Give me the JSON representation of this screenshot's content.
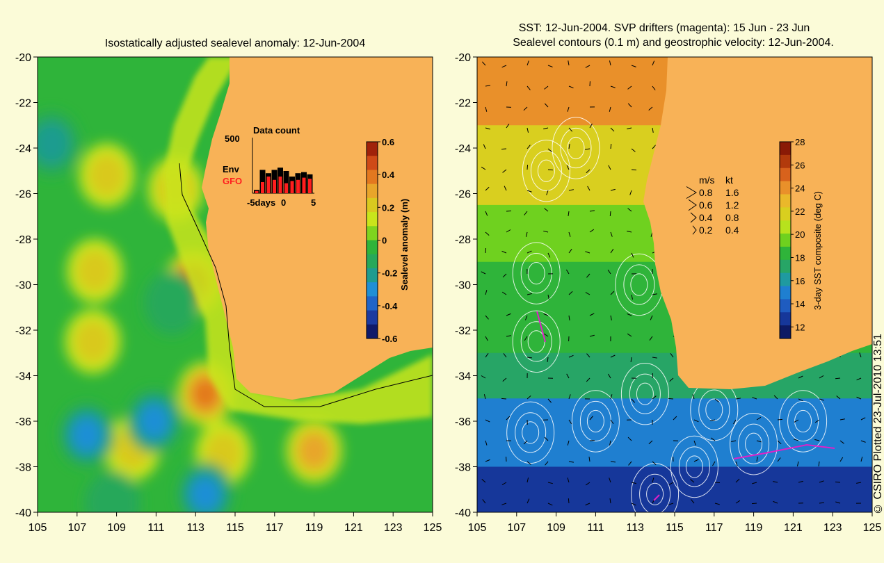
{
  "credit": "© CSIRO Plotted 23-Jul-2010 13:51",
  "colors": {
    "background": "#fbfbd8",
    "land": "#f8b257",
    "ocean_base": "#2fb43a",
    "sla_high": "#d9541a",
    "sla_mid": "#c9e51b",
    "sla_low": "#1f8fd6",
    "contour": "#ffffff",
    "drifter": "#e020c8",
    "gfo_bar": "#ff1e1e",
    "env_bar": "#000000"
  },
  "chart_data": [
    {
      "type": "heatmap",
      "title": "Isostatically adjusted sealevel anomaly: 12-Jun-2004",
      "xlabel": "",
      "ylabel": "",
      "xlim": [
        105,
        125
      ],
      "ylim": [
        -40,
        -20
      ],
      "xticks": [
        "105",
        "107",
        "109",
        "111",
        "113",
        "115",
        "117",
        "119",
        "121",
        "123",
        "125"
      ],
      "yticks": [
        "-20",
        "-22",
        "-24",
        "-26",
        "-28",
        "-30",
        "-32",
        "-34",
        "-36",
        "-38",
        "-40"
      ],
      "colorbar": {
        "label": "Sealevel anomaly (m)",
        "range": [
          -0.6,
          0.6
        ],
        "ticks": [
          "0.6",
          "0.4",
          "0.2",
          "0",
          "-0.2",
          "-0.4",
          "-0.6"
        ],
        "colors": [
          "#a0220a",
          "#cf4a17",
          "#e3781f",
          "#e8a52a",
          "#d9c91f",
          "#c9e51b",
          "#7fd41f",
          "#2fb43a",
          "#27a85a",
          "#1f9c8f",
          "#1f8fd6",
          "#1f64c8",
          "#1c3aa0",
          "#101a6a"
        ]
      },
      "features": [
        {
          "name": "high",
          "lon": 112.9,
          "lat": -29.9,
          "value": 0.5
        },
        {
          "name": "high",
          "lon": 113.5,
          "lat": -34.8,
          "value": 0.4
        },
        {
          "name": "high",
          "lon": 108.5,
          "lat": -25.2,
          "value": 0.2
        },
        {
          "name": "high",
          "lon": 107.9,
          "lat": -29.4,
          "value": 0.2
        },
        {
          "name": "high",
          "lon": 107.8,
          "lat": -32.5,
          "value": 0.2
        },
        {
          "name": "high",
          "lon": 112.0,
          "lat": -25.8,
          "value": 0.2
        },
        {
          "name": "high",
          "lon": 119.0,
          "lat": -37.3,
          "value": 0.25
        },
        {
          "name": "high",
          "lon": 114.4,
          "lat": -37.4,
          "value": 0.2
        },
        {
          "name": "high",
          "lon": 109.8,
          "lat": -37.2,
          "value": 0.2
        },
        {
          "name": "low",
          "lon": 107.5,
          "lat": -36.6,
          "value": -0.25
        },
        {
          "name": "low",
          "lon": 110.9,
          "lat": -36.0,
          "value": -0.25
        },
        {
          "name": "low",
          "lon": 113.5,
          "lat": -39.2,
          "value": -0.3
        },
        {
          "name": "low",
          "lon": 105.7,
          "lat": -23.8,
          "value": -0.2
        },
        {
          "name": "low",
          "lon": 111.8,
          "lat": -30.8,
          "value": -0.15
        },
        {
          "name": "low",
          "lon": 108.8,
          "lat": -39.6,
          "value": -0.15
        }
      ],
      "inset": {
        "type": "bar",
        "title": "Data count",
        "ymax_label": "500",
        "ymax": 500,
        "series_labels": [
          "Env",
          "GFO"
        ],
        "xticks": [
          "-5days",
          "0",
          "5"
        ],
        "x": [
          -5,
          -4,
          -3,
          -2,
          -1,
          0,
          1,
          2,
          3,
          4
        ],
        "series": [
          {
            "name": "Env",
            "values": [
              30,
              210,
              180,
              210,
              230,
              200,
              150,
              180,
              190,
              170
            ]
          },
          {
            "name": "GFO",
            "values": [
              20,
              100,
              150,
              120,
              150,
              90,
              110,
              120,
              140,
              130
            ]
          }
        ]
      }
    },
    {
      "type": "heatmap",
      "title": "SST: 12-Jun-2004. SVP drifters (magenta): 15 Jun - 23 Jun",
      "subtitle": "Sealevel contours (0.1 m) and geostrophic velocity: 12-Jun-2004.",
      "xlabel": "",
      "ylabel": "",
      "xlim": [
        105,
        125
      ],
      "ylim": [
        -40,
        -20
      ],
      "xticks": [
        "105",
        "107",
        "109",
        "111",
        "113",
        "115",
        "117",
        "119",
        "121",
        "123",
        "125"
      ],
      "yticks": [
        "-20",
        "-22",
        "-24",
        "-26",
        "-28",
        "-30",
        "-32",
        "-34",
        "-36",
        "-38",
        "-40"
      ],
      "colorbar": {
        "label": "3-day SST composite (deg C)",
        "range": [
          11,
          28
        ],
        "ticks": [
          "28",
          "26",
          "24",
          "22",
          "20",
          "18",
          "16",
          "14",
          "12"
        ],
        "colors": [
          "#8a1a06",
          "#b23a0c",
          "#d8621c",
          "#e9902a",
          "#eab82a",
          "#d9cf1f",
          "#b7e21d",
          "#6fd11f",
          "#2fb43a",
          "#27a566",
          "#1f9aa0",
          "#1f7fd0",
          "#1f5cc0",
          "#16379a",
          "#0d1a64"
        ]
      },
      "velocity_legend": {
        "header_ms": "m/s",
        "header_kt": "kt",
        "rows": [
          {
            "ms": "0.8",
            "kt": "1.6"
          },
          {
            "ms": "0.6",
            "kt": "1.2"
          },
          {
            "ms": "0.4",
            "kt": "0.8"
          },
          {
            "ms": "0.2",
            "kt": "0.4"
          }
        ]
      },
      "sst_bands": [
        {
          "lat_from": -20,
          "lat_to": -23,
          "value": 24.5
        },
        {
          "lat_from": -23,
          "lat_to": -26.5,
          "value": 22.5
        },
        {
          "lat_from": -26.5,
          "lat_to": -29,
          "value": 19.5
        },
        {
          "lat_from": -29,
          "lat_to": -33,
          "value": 18.5
        },
        {
          "lat_from": -33,
          "lat_to": -35,
          "value": 16.5
        },
        {
          "lat_from": -35,
          "lat_to": -38,
          "value": 15
        },
        {
          "lat_from": -38,
          "lat_to": -40,
          "value": 12.5
        }
      ]
    }
  ]
}
